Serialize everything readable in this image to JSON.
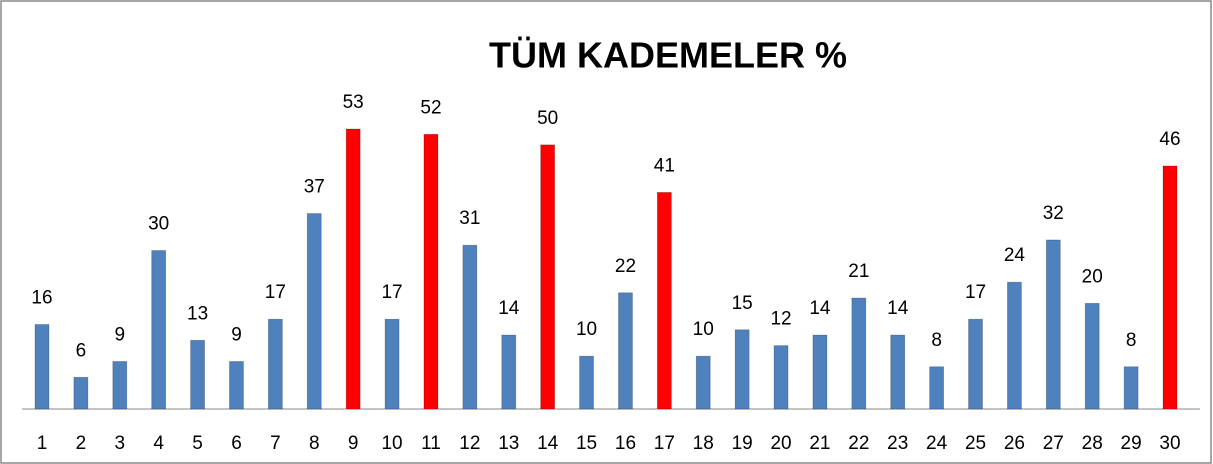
{
  "chart_data": {
    "type": "bar",
    "title": "TÜM KADEMELER %",
    "categories": [
      "1",
      "2",
      "3",
      "4",
      "5",
      "6",
      "7",
      "8",
      "9",
      "10",
      "11",
      "12",
      "13",
      "14",
      "15",
      "16",
      "17",
      "18",
      "19",
      "20",
      "21",
      "22",
      "23",
      "24",
      "25",
      "26",
      "27",
      "28",
      "29",
      "30"
    ],
    "values": [
      16,
      6,
      9,
      30,
      13,
      9,
      17,
      37,
      53,
      17,
      52,
      31,
      14,
      50,
      10,
      22,
      41,
      10,
      15,
      12,
      14,
      21,
      14,
      8,
      17,
      24,
      32,
      20,
      8,
      46
    ],
    "colors": [
      "#4f81bd",
      "#4f81bd",
      "#4f81bd",
      "#4f81bd",
      "#4f81bd",
      "#4f81bd",
      "#4f81bd",
      "#4f81bd",
      "#ff0000",
      "#4f81bd",
      "#ff0000",
      "#4f81bd",
      "#4f81bd",
      "#ff0000",
      "#4f81bd",
      "#4f81bd",
      "#ff0000",
      "#4f81bd",
      "#4f81bd",
      "#4f81bd",
      "#4f81bd",
      "#4f81bd",
      "#4f81bd",
      "#4f81bd",
      "#4f81bd",
      "#4f81bd",
      "#4f81bd",
      "#4f81bd",
      "#4f81bd",
      "#ff0000"
    ]
  }
}
